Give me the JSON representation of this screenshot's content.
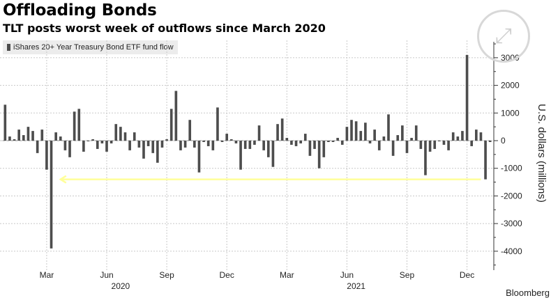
{
  "header": {
    "title": "Offloading Bonds",
    "subtitle": "TLT posts worst week of outflows since March 2020",
    "legend_label": "iShares 20+ Year Treasury Bond ETF fund flow",
    "source": "Bloomberg"
  },
  "colors": {
    "bar": "#4d4d4d",
    "grid": "#c8c8c8",
    "highlight": "#ffff99",
    "axis": "#333333"
  },
  "chart_data": {
    "type": "bar",
    "title": "Offloading Bonds",
    "subtitle": "TLT posts worst week of outflows since March 2020",
    "xlabel": "",
    "ylabel": "U.S. dollars (millions)",
    "ylim": [
      -4700,
      3800
    ],
    "yticks": [
      3000,
      2000,
      1000,
      0,
      -1000,
      -2000,
      -3000,
      -4000
    ],
    "ytick_labels": [
      "3000",
      "2000",
      "1000",
      "0",
      "-1000",
      "-2000",
      "-3000",
      "-4000"
    ],
    "grid": true,
    "legend": "top-left",
    "x_month_labels": [
      {
        "label": "Mar",
        "week": 9
      },
      {
        "label": "Jun",
        "week": 22
      },
      {
        "label": "Sep",
        "week": 35
      },
      {
        "label": "Dec",
        "week": 48
      },
      {
        "label": "Mar",
        "week": 61
      },
      {
        "label": "Jun",
        "week": 74
      },
      {
        "label": "Sep",
        "week": 87
      },
      {
        "label": "Dec",
        "week": 100
      }
    ],
    "x_year_labels": [
      {
        "label": "2020",
        "week": 25
      },
      {
        "label": "2021",
        "week": 76
      }
    ],
    "annotation": {
      "type": "arrow",
      "level": -1400,
      "from_week": 103,
      "to_week": 12
    },
    "series": [
      {
        "name": "iShares 20+ Year Treasury Bond ETF fund flow",
        "values": [
          1300,
          150,
          50,
          400,
          200,
          500,
          350,
          -450,
          400,
          -1050,
          -3900,
          300,
          150,
          -350,
          -600,
          1050,
          1150,
          -400,
          0,
          50,
          -300,
          -100,
          -400,
          -100,
          600,
          500,
          300,
          -350,
          300,
          -250,
          -650,
          -200,
          -450,
          -800,
          -250,
          50,
          1150,
          1800,
          -350,
          -250,
          750,
          -250,
          -1150,
          -50,
          -200,
          -350,
          1200,
          -50,
          250,
          50,
          -100,
          -1050,
          -300,
          -300,
          -150,
          550,
          -350,
          -600,
          -950,
          600,
          800,
          100,
          -150,
          -200,
          -100,
          250,
          -550,
          -300,
          -1000,
          -600,
          -50,
          -50,
          100,
          -150,
          500,
          750,
          700,
          350,
          650,
          -100,
          400,
          -350,
          150,
          950,
          -550,
          200,
          550,
          -450,
          100,
          550,
          -300,
          -1250,
          -400,
          -300,
          0,
          -150,
          -350,
          300,
          150,
          350,
          3100,
          -200,
          400,
          300,
          -1400,
          -50
        ]
      }
    ]
  }
}
